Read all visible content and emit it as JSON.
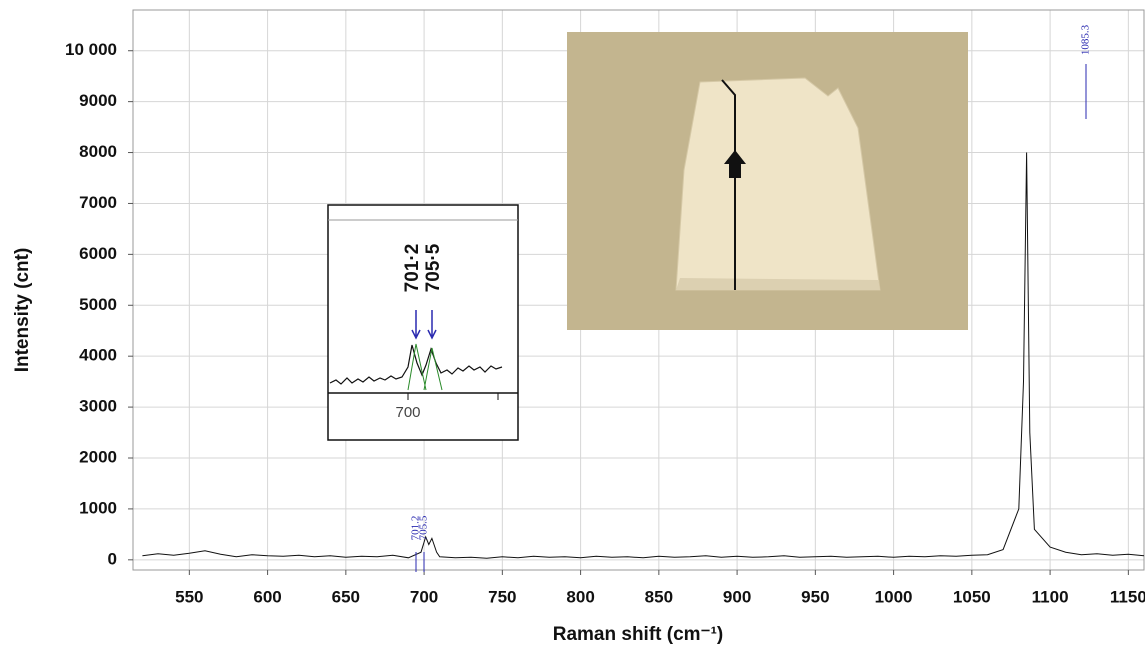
{
  "chart_data": {
    "type": "line",
    "ylabel": "Intensity (cnt)",
    "xlabel": "Raman shift (cm⁻¹)",
    "color": "#111111",
    "grid": true,
    "x": [
      520,
      530,
      540,
      550,
      560,
      570,
      580,
      590,
      600,
      610,
      620,
      630,
      640,
      650,
      660,
      670,
      680,
      690,
      698,
      701,
      703,
      705,
      708,
      710,
      720,
      730,
      740,
      750,
      760,
      770,
      780,
      790,
      800,
      810,
      820,
      830,
      840,
      850,
      860,
      870,
      880,
      890,
      900,
      910,
      920,
      930,
      940,
      950,
      960,
      970,
      980,
      990,
      1000,
      1010,
      1020,
      1030,
      1040,
      1050,
      1060,
      1070,
      1080,
      1083,
      1085,
      1087,
      1090,
      1100,
      1110,
      1120,
      1130,
      1140,
      1150,
      1160
    ],
    "values": [
      80,
      120,
      90,
      130,
      180,
      110,
      60,
      100,
      80,
      70,
      90,
      60,
      80,
      50,
      70,
      60,
      90,
      40,
      150,
      450,
      300,
      420,
      150,
      60,
      40,
      50,
      30,
      60,
      40,
      70,
      50,
      60,
      40,
      70,
      50,
      60,
      40,
      70,
      50,
      60,
      80,
      50,
      70,
      50,
      60,
      80,
      50,
      60,
      70,
      50,
      60,
      70,
      50,
      70,
      60,
      80,
      70,
      90,
      100,
      200,
      1000,
      3500,
      8000,
      2500,
      600,
      250,
      150,
      100,
      120,
      90,
      110,
      80
    ],
    "xlim": [
      514,
      1160
    ],
    "ylim": [
      -200,
      10800
    ],
    "xticks": [
      550,
      600,
      650,
      700,
      750,
      800,
      850,
      900,
      950,
      1000,
      1050,
      1100,
      1150
    ],
    "yticks": [
      0,
      1000,
      2000,
      3000,
      4000,
      5000,
      6000,
      7000,
      8000,
      9000,
      {
        "value": 10000,
        "label": "10 000"
      }
    ],
    "peak_labels": [
      "701.2",
      "705.5",
      "1085.3"
    ],
    "inset": {
      "labels": [
        "701·2",
        "705·5"
      ],
      "tick": "700"
    }
  }
}
